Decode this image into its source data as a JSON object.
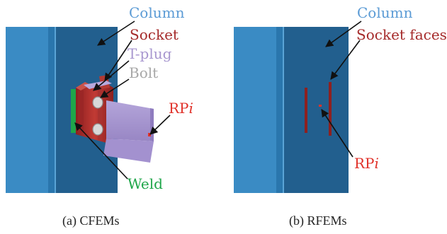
{
  "colors": {
    "column": "#2f7fb8",
    "column_dark": "#1d5f95",
    "column_label": "#5b9bd5",
    "socket": "#a52a2a",
    "tplug": "#a897cf",
    "bolt": "#a8a8a8",
    "rp": "#e0322a",
    "weld": "#1fa64a",
    "arrow": "#111111"
  },
  "panel_a": {
    "caption": "(a)  CFEMs",
    "labels": {
      "column": "Column",
      "socket": "Socket",
      "tplug": "T-plug",
      "bolt": "Bolt",
      "rp_prefix": "RP",
      "rp_suffix": "i",
      "weld": "Weld"
    }
  },
  "panel_b": {
    "caption": "(b)  RFEMs",
    "labels": {
      "column": "Column",
      "socket_faces": "Socket faces",
      "rp_prefix": "RP",
      "rp_suffix": "i"
    }
  }
}
